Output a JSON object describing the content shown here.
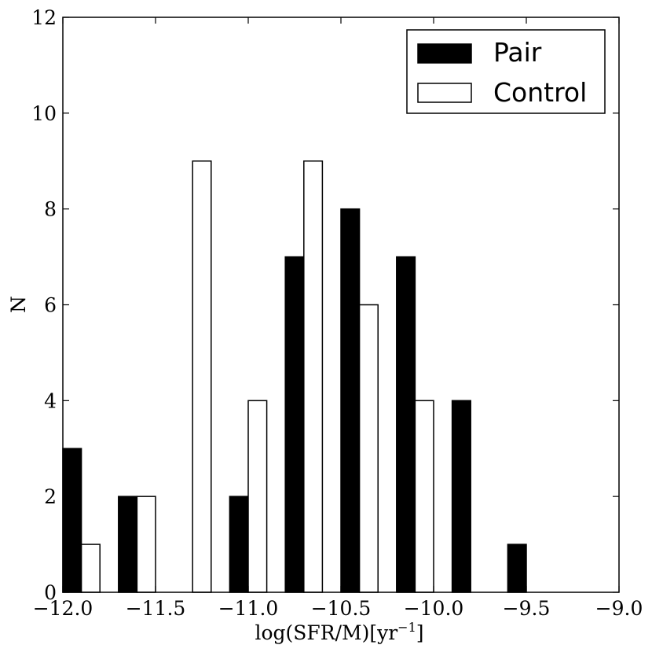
{
  "chart_data": {
    "type": "bar",
    "title": "",
    "xlabel": "log(SFR/M)[yr",
    "xlabel_superscript": "−1",
    "xlabel_suffix": "]",
    "ylabel": "N",
    "xlim": [
      -12.0,
      -9.0
    ],
    "ylim": [
      0,
      12
    ],
    "grid": false,
    "legend_position": "top-right",
    "x_tick_labels": [
      "−12.0",
      "−11.5",
      "−11.0",
      "−10.5",
      "−10.0",
      "−9.5",
      "−9.0"
    ],
    "x_ticks": [
      -12.0,
      -11.5,
      -11.0,
      -10.5,
      -10.0,
      -9.5,
      -9.0
    ],
    "y_tick_labels": [
      "0",
      "2",
      "4",
      "6",
      "8",
      "10",
      "12"
    ],
    "y_ticks": [
      0,
      2,
      4,
      6,
      8,
      10,
      12
    ],
    "bin_width": 0.1,
    "series": [
      {
        "name": "Pair",
        "color": "#000000",
        "x": [
          -11.95,
          -11.65,
          -11.05,
          -10.75,
          -10.45,
          -10.15,
          -9.85,
          -9.55
        ],
        "values": [
          3,
          2,
          2,
          7,
          8,
          7,
          4,
          1
        ]
      },
      {
        "name": "Control",
        "color": "#ffffff",
        "x": [
          -11.85,
          -11.55,
          -11.25,
          -10.95,
          -10.65,
          -10.35,
          -10.05
        ],
        "values": [
          1,
          2,
          9,
          4,
          9,
          6,
          4
        ]
      }
    ]
  }
}
